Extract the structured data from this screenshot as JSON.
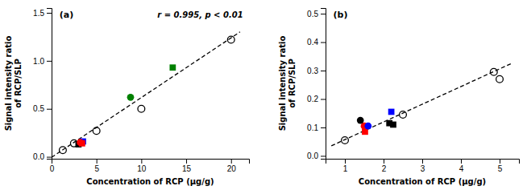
{
  "chart_data": [
    {
      "type": "scatter",
      "xlabel": "Concentration of RCP (μg/g)",
      "ylabel": "Signal intensity ratio\nof RCP/SLP",
      "annotations": [
        "(a)",
        "r = 0.995, p < 0.01"
      ],
      "xlim": [
        0,
        22
      ],
      "ylim": [
        -0.02,
        1.55
      ],
      "xticks": [
        0,
        5,
        10,
        15,
        20
      ],
      "yticks": [
        {
          "value": 0,
          "label": "0.0"
        },
        0.5,
        {
          "value": 1.0,
          "label": "1.0"
        },
        1.5
      ],
      "grid": false,
      "series": [
        {
          "type": "line",
          "line_style": "dashed",
          "color": "black",
          "x": [
            0,
            21
          ],
          "values": [
            -0.005,
            1.3012
          ]
        },
        {
          "type": "scatter",
          "marker": "circle-open",
          "color": "black",
          "x": [
            1.25,
            2.5,
            5.0,
            10.0,
            20.0
          ],
          "values": [
            0.07,
            0.14,
            0.27,
            0.5,
            1.22
          ]
        },
        {
          "type": "scatter",
          "marker": "square",
          "color": "black",
          "x": [
            3.0
          ],
          "values": [
            0.13
          ]
        },
        {
          "type": "scatter",
          "marker": "square",
          "color": "blue",
          "x": [
            3.5
          ],
          "values": [
            0.16
          ]
        },
        {
          "type": "scatter",
          "marker": "circle",
          "color": "red",
          "x": [
            3.2
          ],
          "values": [
            0.15
          ]
        },
        {
          "type": "scatter",
          "marker": "square",
          "color": "red",
          "x": [
            3.4
          ],
          "values": [
            0.14
          ]
        },
        {
          "type": "scatter",
          "marker": "circle",
          "color": "green",
          "x": [
            8.8
          ],
          "values": [
            0.62
          ]
        },
        {
          "type": "scatter",
          "marker": "square",
          "color": "green",
          "x": [
            13.5
          ],
          "values": [
            0.93
          ]
        }
      ]
    },
    {
      "type": "scatter",
      "xlabel": "Concentration of RCP (μg/g)",
      "ylabel": "Signal intensity ratio\nof RCP/SLP",
      "annotations": [
        "(b)"
      ],
      "xlim": [
        0.5,
        5.5
      ],
      "ylim": [
        -0.01,
        0.52
      ],
      "xticks": [
        1,
        2,
        3,
        4,
        5
      ],
      "yticks": [
        {
          "value": 0,
          "label": "0.0"
        },
        0.1,
        0.2,
        0.3,
        0.4,
        0.5
      ],
      "grid": false,
      "series": [
        {
          "type": "line",
          "line_style": "dashed",
          "color": "black",
          "x": [
            0.65,
            5.3
          ],
          "values": [
            0.03543,
            0.32466
          ]
        },
        {
          "type": "scatter",
          "marker": "circle-open",
          "color": "black",
          "x": [
            1.0,
            2.5,
            5.0,
            4.85
          ],
          "values": [
            0.055,
            0.145,
            0.27,
            0.295
          ]
        },
        {
          "type": "scatter",
          "marker": "square",
          "color": "black",
          "x": [
            2.15
          ],
          "values": [
            0.115
          ]
        },
        {
          "type": "scatter",
          "marker": "square",
          "color": "blue",
          "x": [
            2.2
          ],
          "values": [
            0.155
          ]
        },
        {
          "type": "scatter",
          "marker": "circle",
          "color": "red",
          "x": [
            1.5
          ],
          "values": [
            0.105
          ]
        },
        {
          "type": "scatter",
          "marker": "square",
          "color": "red",
          "x": [
            1.52
          ],
          "values": [
            0.085
          ]
        },
        {
          "type": "scatter",
          "marker": "circle",
          "color": "blue",
          "x": [
            1.6
          ],
          "values": [
            0.105
          ]
        },
        {
          "type": "scatter",
          "marker": "circle",
          "color": "black",
          "x": [
            1.4
          ],
          "values": [
            0.125
          ]
        },
        {
          "type": "scatter",
          "marker": "square",
          "color": "black",
          "x": [
            2.25
          ],
          "values": [
            0.11
          ]
        }
      ]
    }
  ]
}
